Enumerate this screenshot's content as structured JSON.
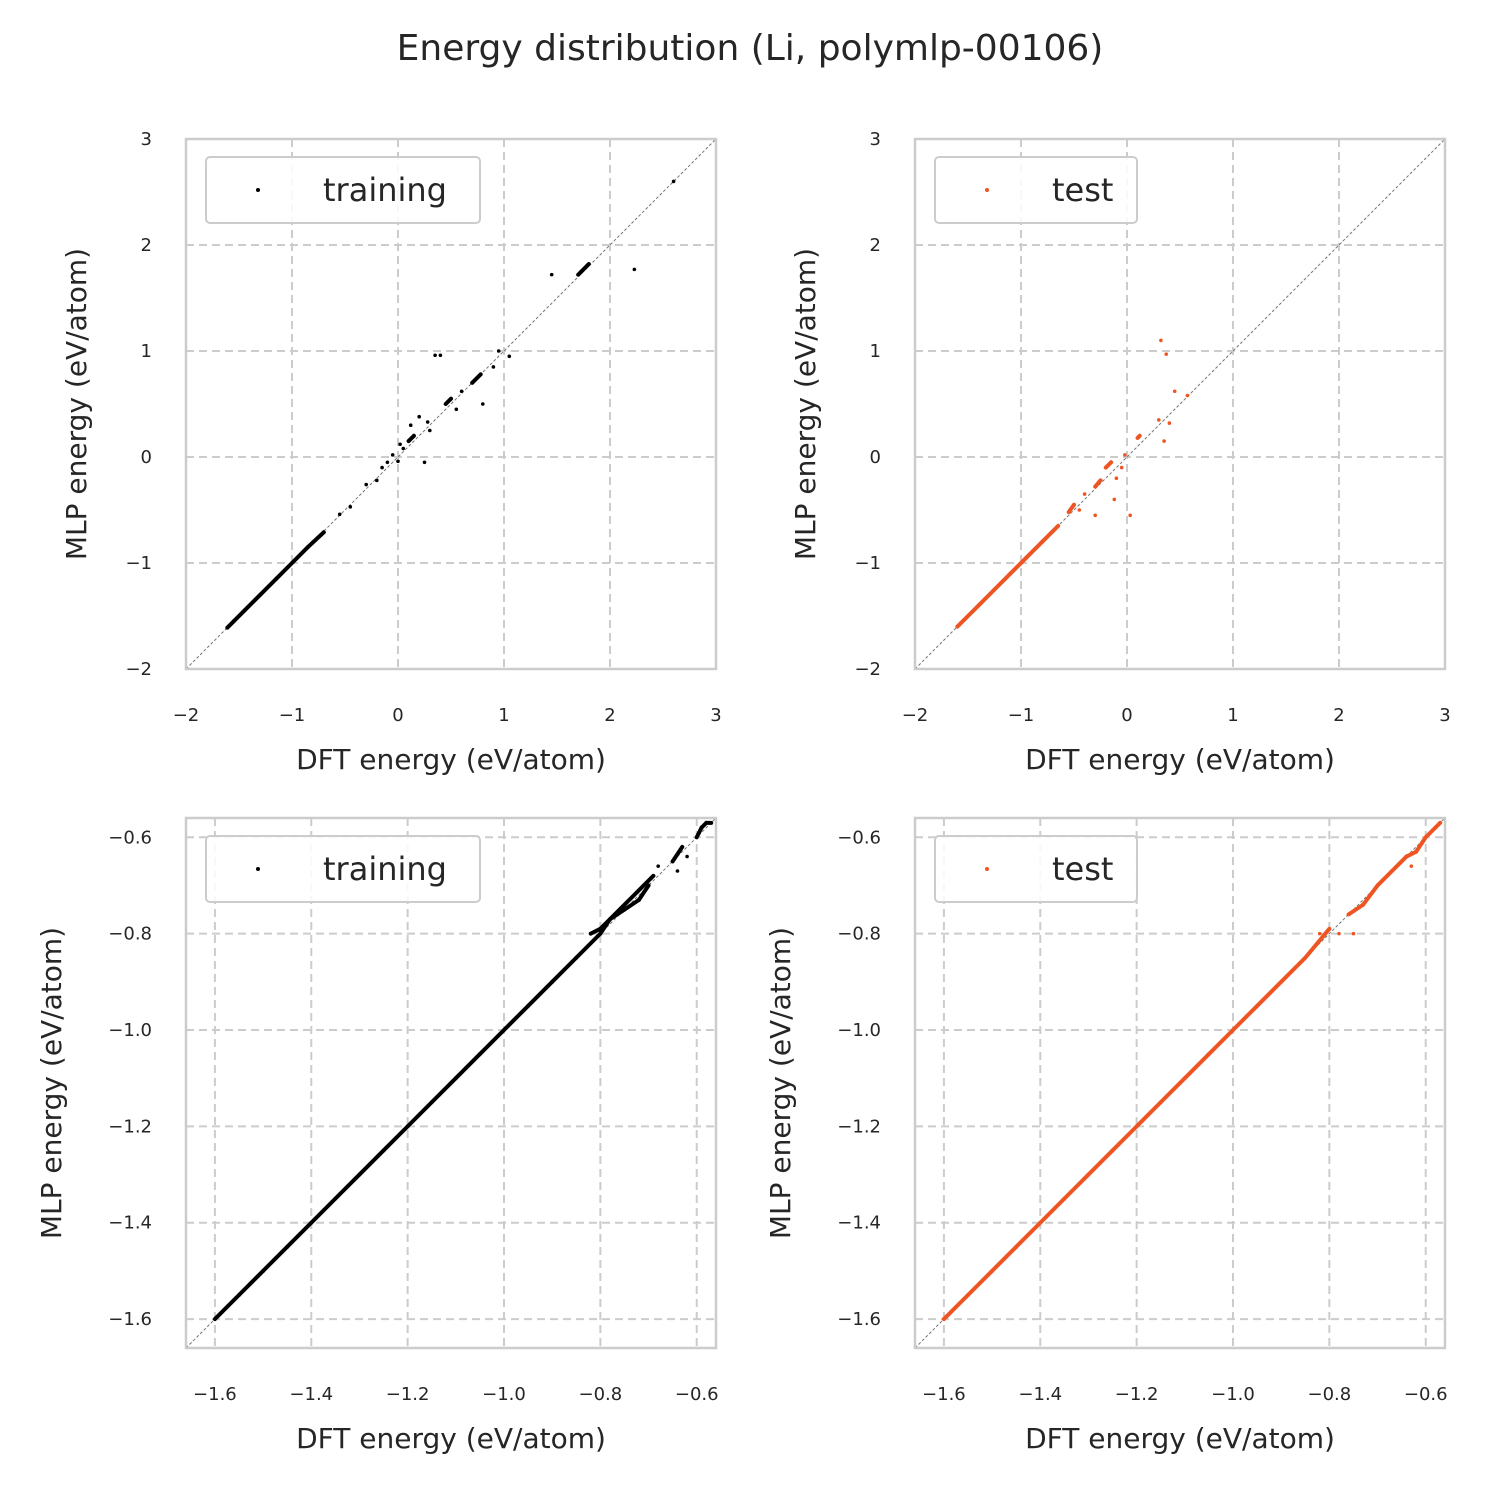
{
  "figure": {
    "title": "Energy distribution (Li, polymlp-00106)"
  },
  "colors": {
    "training": "#000000",
    "test": "#ee5522",
    "grid": "#cccccc",
    "spine": "#cccccc",
    "diagonal": "#777777"
  },
  "chart_data": [
    {
      "type": "scatter",
      "name": "panel-full-training",
      "xlabel": "DFT energy (eV/atom)",
      "ylabel": "MLP energy (eV/atom)",
      "xlim": [
        -2,
        3
      ],
      "ylim": [
        -2,
        3
      ],
      "xticks": [
        -2,
        -1,
        0,
        1,
        2,
        3
      ],
      "yticks": [
        -2,
        -1,
        0,
        1,
        2,
        3
      ],
      "xtick_labels": [
        "−2",
        "−1",
        "0",
        "1",
        "2",
        "3"
      ],
      "ytick_labels": [
        "−2",
        "−1",
        "0",
        "1",
        "2",
        "3"
      ],
      "grid": true,
      "legend": "upper-left",
      "diagonal": true,
      "series": [
        {
          "name": "training",
          "color": "#000000",
          "points": [
            [
              -1.61,
              -1.61
            ],
            [
              -1.55,
              -1.55
            ],
            [
              -1.45,
              -1.45
            ],
            [
              -1.3,
              -1.3
            ],
            [
              -1.15,
              -1.15
            ],
            [
              -1.0,
              -1.0
            ],
            [
              -0.85,
              -0.85
            ],
            [
              -0.7,
              -0.71
            ],
            [
              -0.55,
              -0.54
            ],
            [
              -0.45,
              -0.47
            ],
            [
              -0.3,
              -0.26
            ],
            [
              -0.2,
              -0.22
            ],
            [
              -0.1,
              -0.05
            ],
            [
              -0.05,
              0.02
            ],
            [
              0.02,
              0.12
            ],
            [
              0.05,
              0.08
            ],
            [
              0.0,
              -0.04
            ],
            [
              0.1,
              0.15
            ],
            [
              0.15,
              0.2
            ],
            [
              0.2,
              0.38
            ],
            [
              0.28,
              0.33
            ],
            [
              0.3,
              0.25
            ],
            [
              0.35,
              0.96
            ],
            [
              0.4,
              0.96
            ],
            [
              0.45,
              0.5
            ],
            [
              0.5,
              0.55
            ],
            [
              0.55,
              0.45
            ],
            [
              0.6,
              0.62
            ],
            [
              0.7,
              0.7
            ],
            [
              0.78,
              0.78
            ],
            [
              0.8,
              0.5
            ],
            [
              0.9,
              0.85
            ],
            [
              0.95,
              1.0
            ],
            [
              1.05,
              0.95
            ],
            [
              1.45,
              1.72
            ],
            [
              1.7,
              1.72
            ],
            [
              1.8,
              1.82
            ],
            [
              2.23,
              1.77
            ],
            [
              2.6,
              2.6
            ],
            [
              0.25,
              -0.05
            ],
            [
              0.12,
              0.3
            ],
            [
              -0.15,
              -0.1
            ]
          ]
        }
      ]
    },
    {
      "type": "scatter",
      "name": "panel-full-test",
      "xlabel": "DFT energy (eV/atom)",
      "ylabel": "MLP energy (eV/atom)",
      "xlim": [
        -2,
        3
      ],
      "ylim": [
        -2,
        3
      ],
      "xticks": [
        -2,
        -1,
        0,
        1,
        2,
        3
      ],
      "yticks": [
        -2,
        -1,
        0,
        1,
        2,
        3
      ],
      "xtick_labels": [
        "−2",
        "−1",
        "0",
        "1",
        "2",
        "3"
      ],
      "ytick_labels": [
        "−2",
        "−1",
        "0",
        "1",
        "2",
        "3"
      ],
      "grid": true,
      "legend": "upper-left",
      "diagonal": true,
      "series": [
        {
          "name": "test",
          "color": "#ee5522",
          "points": [
            [
              -1.6,
              -1.6
            ],
            [
              -1.5,
              -1.5
            ],
            [
              -1.4,
              -1.4
            ],
            [
              -1.25,
              -1.25
            ],
            [
              -1.1,
              -1.1
            ],
            [
              -0.95,
              -0.95
            ],
            [
              -0.8,
              -0.8
            ],
            [
              -0.65,
              -0.65
            ],
            [
              -0.55,
              -0.52
            ],
            [
              -0.5,
              -0.45
            ],
            [
              -0.45,
              -0.5
            ],
            [
              -0.4,
              -0.35
            ],
            [
              -0.3,
              -0.28
            ],
            [
              -0.25,
              -0.22
            ],
            [
              -0.2,
              -0.1
            ],
            [
              -0.15,
              -0.05
            ],
            [
              -0.1,
              -0.2
            ],
            [
              -0.05,
              -0.1
            ],
            [
              -0.12,
              -0.4
            ],
            [
              -0.3,
              -0.55
            ],
            [
              0.03,
              -0.55
            ],
            [
              0.1,
              0.18
            ],
            [
              0.12,
              0.2
            ],
            [
              0.3,
              0.35
            ],
            [
              0.32,
              1.1
            ],
            [
              0.37,
              0.97
            ],
            [
              0.4,
              0.32
            ],
            [
              0.35,
              0.15
            ],
            [
              0.45,
              0.62
            ],
            [
              0.57,
              0.58
            ],
            [
              -0.02,
              0.02
            ]
          ]
        }
      ]
    },
    {
      "type": "scatter",
      "name": "panel-zoom-training",
      "xlabel": "DFT energy (eV/atom)",
      "ylabel": "MLP energy (eV/atom)",
      "xlim": [
        -1.66,
        -0.56
      ],
      "ylim": [
        -1.66,
        -0.56
      ],
      "xticks": [
        -1.6,
        -1.4,
        -1.2,
        -1.0,
        -0.8,
        -0.6
      ],
      "yticks": [
        -1.6,
        -1.4,
        -1.2,
        -1.0,
        -0.8,
        -0.6
      ],
      "xtick_labels": [
        "−1.6",
        "−1.4",
        "−1.2",
        "−1.0",
        "−0.8",
        "−0.6"
      ],
      "ytick_labels": [
        "−1.6",
        "−1.4",
        "−1.2",
        "−1.0",
        "−0.8",
        "−0.6"
      ],
      "grid": true,
      "legend": "upper-left",
      "diagonal": true,
      "series": [
        {
          "name": "training",
          "color": "#000000",
          "points": [
            [
              -1.6,
              -1.6
            ],
            [
              -1.55,
              -1.55
            ],
            [
              -1.5,
              -1.5
            ],
            [
              -1.45,
              -1.45
            ],
            [
              -1.4,
              -1.4
            ],
            [
              -1.35,
              -1.35
            ],
            [
              -1.3,
              -1.3
            ],
            [
              -1.25,
              -1.25
            ],
            [
              -1.2,
              -1.2
            ],
            [
              -1.15,
              -1.15
            ],
            [
              -1.1,
              -1.1
            ],
            [
              -1.05,
              -1.05
            ],
            [
              -1.0,
              -1.0
            ],
            [
              -0.95,
              -0.95
            ],
            [
              -0.9,
              -0.9
            ],
            [
              -0.85,
              -0.85
            ],
            [
              -0.8,
              -0.8
            ],
            [
              -0.78,
              -0.77
            ],
            [
              -0.75,
              -0.75
            ],
            [
              -0.72,
              -0.73
            ],
            [
              -0.7,
              -0.7
            ],
            [
              -0.68,
              -0.66
            ],
            [
              -0.65,
              -0.65
            ],
            [
              -0.63,
              -0.62
            ],
            [
              -0.62,
              -0.64
            ],
            [
              -0.6,
              -0.6
            ],
            [
              -0.59,
              -0.58
            ],
            [
              -0.58,
              -0.57
            ],
            [
              -0.57,
              -0.57
            ],
            [
              -0.64,
              -0.67
            ],
            [
              -0.69,
              -0.68
            ],
            [
              -0.8,
              -0.79
            ],
            [
              -0.82,
              -0.8
            ]
          ]
        }
      ]
    },
    {
      "type": "scatter",
      "name": "panel-zoom-test",
      "xlabel": "DFT energy (eV/atom)",
      "ylabel": "MLP energy (eV/atom)",
      "xlim": [
        -1.66,
        -0.56
      ],
      "ylim": [
        -1.66,
        -0.56
      ],
      "xticks": [
        -1.6,
        -1.4,
        -1.2,
        -1.0,
        -0.8,
        -0.6
      ],
      "yticks": [
        -1.6,
        -1.4,
        -1.2,
        -1.0,
        -0.8,
        -0.6
      ],
      "xtick_labels": [
        "−1.6",
        "−1.4",
        "−1.2",
        "−1.0",
        "−0.8",
        "−0.6"
      ],
      "ytick_labels": [
        "−1.6",
        "−1.4",
        "−1.2",
        "−1.0",
        "−0.8",
        "−0.6"
      ],
      "grid": true,
      "legend": "upper-left",
      "diagonal": true,
      "series": [
        {
          "name": "test",
          "color": "#ee5522",
          "points": [
            [
              -1.6,
              -1.6
            ],
            [
              -1.55,
              -1.55
            ],
            [
              -1.5,
              -1.5
            ],
            [
              -1.45,
              -1.45
            ],
            [
              -1.4,
              -1.4
            ],
            [
              -1.35,
              -1.35
            ],
            [
              -1.3,
              -1.3
            ],
            [
              -1.25,
              -1.25
            ],
            [
              -1.2,
              -1.2
            ],
            [
              -1.15,
              -1.15
            ],
            [
              -1.1,
              -1.1
            ],
            [
              -1.05,
              -1.05
            ],
            [
              -1.0,
              -1.0
            ],
            [
              -0.95,
              -0.95
            ],
            [
              -0.9,
              -0.9
            ],
            [
              -0.85,
              -0.85
            ],
            [
              -0.8,
              -0.79
            ],
            [
              -0.78,
              -0.8
            ],
            [
              -0.76,
              -0.76
            ],
            [
              -0.73,
              -0.74
            ],
            [
              -0.7,
              -0.7
            ],
            [
              -0.67,
              -0.67
            ],
            [
              -0.64,
              -0.64
            ],
            [
              -0.62,
              -0.63
            ],
            [
              -0.6,
              -0.6
            ],
            [
              -0.58,
              -0.58
            ],
            [
              -0.57,
              -0.57
            ],
            [
              -0.75,
              -0.8
            ],
            [
              -0.82,
              -0.8
            ],
            [
              -0.63,
              -0.66
            ]
          ]
        }
      ]
    }
  ]
}
